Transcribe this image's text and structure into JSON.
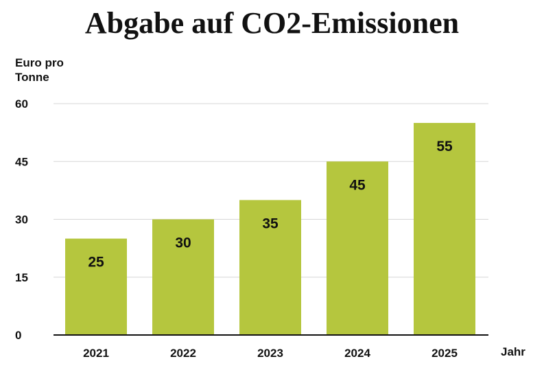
{
  "chart_data": {
    "type": "bar",
    "title": "Abgabe auf CO2-Emissionen",
    "ylabel": "Euro pro Tonne",
    "xlabel": "Jahr",
    "categories": [
      "2021",
      "2022",
      "2023",
      "2024",
      "2025"
    ],
    "values": [
      25,
      30,
      35,
      45,
      55
    ],
    "ylim": [
      0,
      60
    ],
    "yticks": [
      0,
      15,
      30,
      45,
      60
    ],
    "grid": true,
    "bar_color": "#b5c63e",
    "data_labels": true
  }
}
